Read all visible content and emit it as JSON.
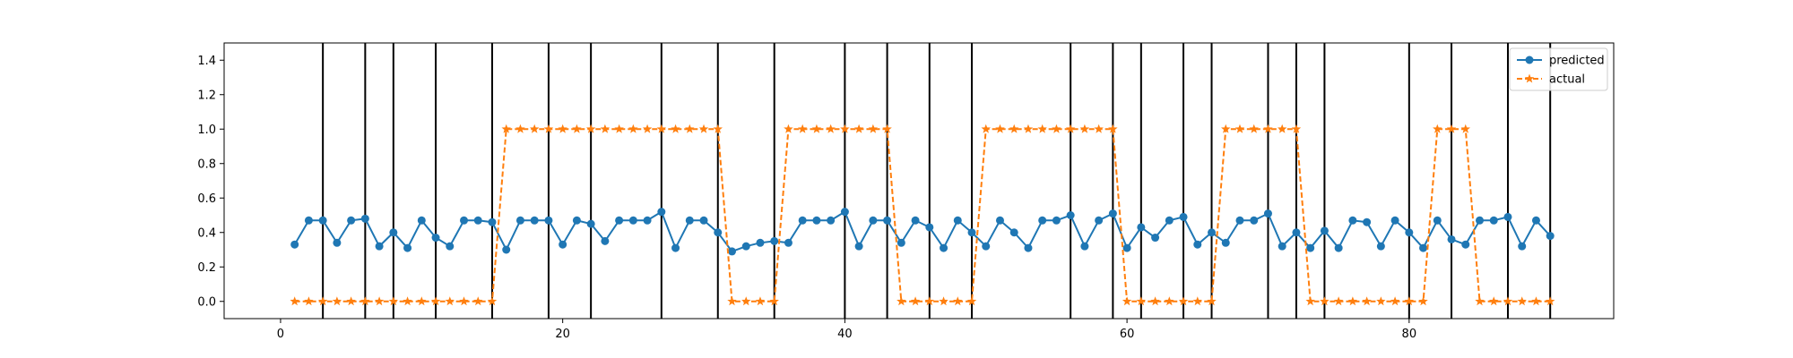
{
  "chart_data": {
    "type": "line",
    "title": "",
    "xlabel": "",
    "ylabel": "",
    "xlim": [
      -4,
      94.5
    ],
    "ylim": [
      -0.1,
      1.5
    ],
    "xticks": [
      0,
      20,
      40,
      60,
      80
    ],
    "yticks": [
      0.0,
      0.2,
      0.4,
      0.6,
      0.8,
      1.0,
      1.2,
      1.4
    ],
    "xtick_labels": [
      "0",
      "20",
      "40",
      "60",
      "80"
    ],
    "ytick_labels": [
      "0.0",
      "0.2",
      "0.4",
      "0.6",
      "0.8",
      "1.0",
      "1.2",
      "1.4"
    ],
    "grid": false,
    "legend_position": "top-right",
    "x": [
      1,
      2,
      3,
      4,
      5,
      6,
      7,
      8,
      9,
      10,
      11,
      12,
      13,
      14,
      15,
      16,
      17,
      18,
      19,
      20,
      21,
      22,
      23,
      24,
      25,
      26,
      27,
      28,
      29,
      30,
      31,
      32,
      33,
      34,
      35,
      36,
      37,
      38,
      39,
      40,
      41,
      42,
      43,
      44,
      45,
      46,
      47,
      48,
      49,
      50,
      51,
      52,
      53,
      54,
      55,
      56,
      57,
      58,
      59,
      60,
      61,
      62,
      63,
      64,
      65,
      66,
      67,
      68,
      69,
      70,
      71,
      72,
      73,
      74,
      75,
      76,
      77,
      78,
      79,
      80,
      81,
      82,
      83,
      84,
      85,
      86,
      87,
      88,
      89,
      90
    ],
    "vlines": [
      3,
      6,
      8,
      11,
      15,
      19,
      22,
      27,
      31,
      35,
      40,
      43,
      46,
      49,
      56,
      59,
      61,
      64,
      66,
      70,
      72,
      74,
      80,
      83,
      87,
      90
    ],
    "series": [
      {
        "name": "predicted",
        "color": "#1f77b4",
        "marker": "circle",
        "linestyle": "solid",
        "values": [
          0.33,
          0.47,
          0.47,
          0.34,
          0.47,
          0.48,
          0.32,
          0.4,
          0.31,
          0.47,
          0.37,
          0.32,
          0.47,
          0.47,
          0.46,
          0.3,
          0.47,
          0.47,
          0.47,
          0.33,
          0.47,
          0.45,
          0.35,
          0.47,
          0.47,
          0.47,
          0.52,
          0.31,
          0.47,
          0.47,
          0.4,
          0.29,
          0.32,
          0.34,
          0.35,
          0.34,
          0.47,
          0.47,
          0.47,
          0.52,
          0.32,
          0.47,
          0.47,
          0.34,
          0.47,
          0.43,
          0.31,
          0.47,
          0.4,
          0.32,
          0.47,
          0.4,
          0.31,
          0.47,
          0.47,
          0.5,
          0.32,
          0.47,
          0.51,
          0.31,
          0.43,
          0.37,
          0.47,
          0.49,
          0.33,
          0.4,
          0.34,
          0.47,
          0.47,
          0.51,
          0.32,
          0.4,
          0.31,
          0.41,
          0.31,
          0.47,
          0.46,
          0.32,
          0.47,
          0.4,
          0.31,
          0.47,
          0.36,
          0.33,
          0.47,
          0.47,
          0.49,
          0.32,
          0.47,
          0.38
        ]
      },
      {
        "name": "actual",
        "color": "#ff7f0e",
        "marker": "star",
        "linestyle": "dashed",
        "values": [
          0,
          0,
          0,
          0,
          0,
          0,
          0,
          0,
          0,
          0,
          0,
          0,
          0,
          0,
          0,
          1,
          1,
          1,
          1,
          1,
          1,
          1,
          1,
          1,
          1,
          1,
          1,
          1,
          1,
          1,
          1,
          0,
          0,
          0,
          0,
          1,
          1,
          1,
          1,
          1,
          1,
          1,
          1,
          0,
          0,
          0,
          0,
          0,
          0,
          1,
          1,
          1,
          1,
          1,
          1,
          1,
          1,
          1,
          1,
          0,
          0,
          0,
          0,
          0,
          0,
          0,
          1,
          1,
          1,
          1,
          1,
          1,
          0,
          0,
          0,
          0,
          0,
          0,
          0,
          0,
          0,
          1,
          1,
          1,
          0,
          0,
          0,
          0,
          0,
          0
        ]
      }
    ]
  }
}
